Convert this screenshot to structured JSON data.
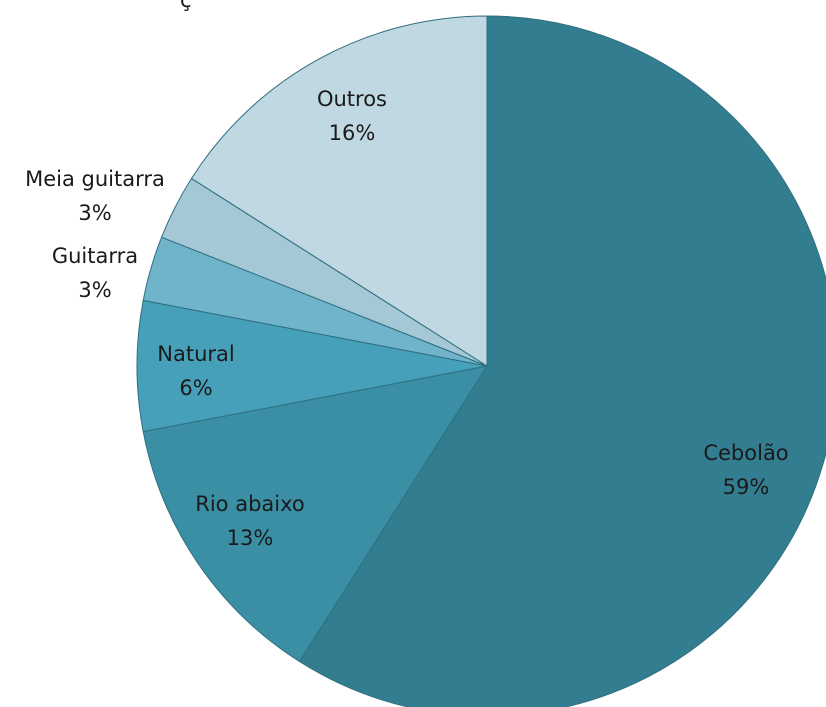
{
  "top_fragment": "ç",
  "chart_data": {
    "type": "pie",
    "title": "",
    "slices": [
      {
        "label": "Cebolão",
        "value": 59,
        "display": "59%",
        "color": "#337d91"
      },
      {
        "label": "Rio abaixo",
        "value": 13,
        "display": "13%",
        "color": "#3a8fa4"
      },
      {
        "label": "Natural",
        "value": 6,
        "display": "6%",
        "color": "#47a0b9"
      },
      {
        "label": "Guitarra",
        "value": 3,
        "display": "3%",
        "color": "#6fb4cb"
      },
      {
        "label": "Meia guitarra",
        "value": 3,
        "display": "3%",
        "color": "#a4c8d6"
      },
      {
        "label": "Outros",
        "value": 16,
        "display": "16%",
        "color": "#c0d8e2"
      }
    ],
    "start_angle": "12 o'clock",
    "direction": "clockwise",
    "legend": "none",
    "data_labels": "category and percentage"
  }
}
